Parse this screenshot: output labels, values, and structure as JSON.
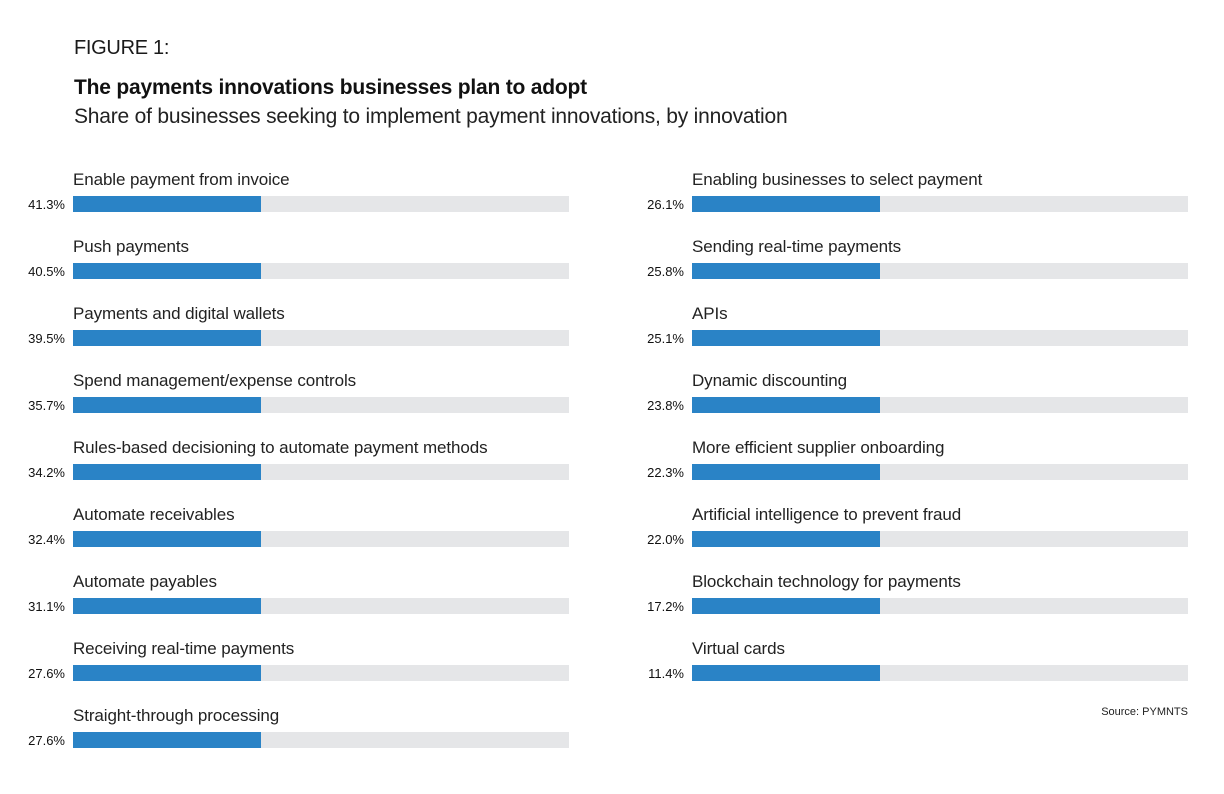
{
  "header": {
    "figure_label": "FIGURE 1:",
    "title": "The payments innovations businesses plan to adopt",
    "subtitle": "Share of businesses seeking to implement payment innovations, by innovation"
  },
  "source": "Source: PYMNTS",
  "colors": {
    "bar": "#2a83c6",
    "track": "#e5e6e8"
  },
  "chart_data": {
    "type": "bar",
    "orientation": "horizontal",
    "title": "The payments innovations businesses plan to adopt",
    "subtitle": "Share of businesses seeking to implement payment innovations, by innovation",
    "xlabel": "",
    "ylabel": "",
    "unit": "%",
    "grid": false,
    "legend": "none",
    "displayed_fill_fraction": 0.38,
    "columns": [
      {
        "categories": [
          "Enable payment from invoice",
          "Push payments",
          "Payments and digital wallets",
          "Spend management/expense controls",
          "Rules-based decisioning to automate payment methods",
          "Automate receivables",
          "Automate payables",
          "Receiving real-time payments",
          "Straight-through processing"
        ],
        "values": [
          41.3,
          40.5,
          39.5,
          35.7,
          34.2,
          32.4,
          31.1,
          27.6,
          27.6
        ],
        "labels": [
          "41.3%",
          "40.5%",
          "39.5%",
          "35.7%",
          "34.2%",
          "32.4%",
          "31.1%",
          "27.6%",
          "27.6%"
        ]
      },
      {
        "categories": [
          "Enabling businesses to select payment",
          "Sending real-time payments",
          "APIs",
          "Dynamic discounting",
          "More efficient supplier onboarding",
          "Artificial intelligence to prevent fraud",
          "Blockchain technology for payments",
          "Virtual cards"
        ],
        "values": [
          26.1,
          25.8,
          25.1,
          23.8,
          22.3,
          22.0,
          17.2,
          11.4
        ],
        "labels": [
          "26.1%",
          "25.8%",
          "25.1%",
          "23.8%",
          "22.3%",
          "22.0%",
          "17.2%",
          "11.4%"
        ]
      }
    ]
  }
}
